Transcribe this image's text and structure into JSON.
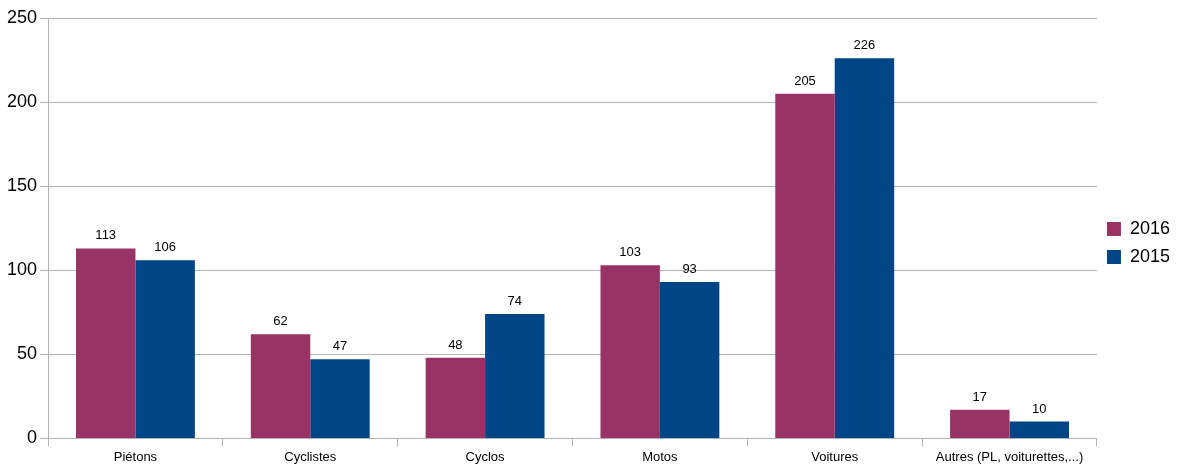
{
  "chart_data": {
    "type": "bar",
    "categories": [
      "Piétons",
      "Cyclistes",
      "Cyclos",
      "Motos",
      "Voitures",
      "Autres (PL, voiturettes,...)"
    ],
    "series": [
      {
        "name": "2016",
        "color": "#993366",
        "values": [
          113,
          62,
          48,
          103,
          205,
          17
        ]
      },
      {
        "name": "2015",
        "color": "#004586",
        "values": [
          106,
          47,
          74,
          93,
          226,
          10
        ]
      }
    ],
    "ylim": [
      0,
      250
    ],
    "yticks": [
      0,
      50,
      100,
      150,
      200,
      250
    ],
    "grid": "y",
    "legend": "right",
    "data_labels": true
  }
}
